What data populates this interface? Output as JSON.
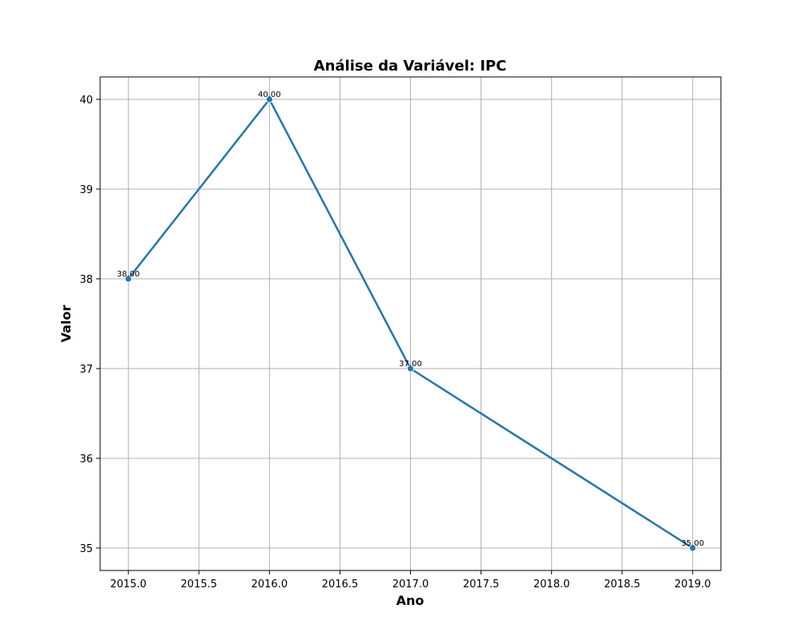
{
  "chart_data": {
    "type": "line",
    "title": "Análise da Variável: IPC",
    "xlabel": "Ano",
    "ylabel": "Valor",
    "x": [
      2015,
      2016,
      2017,
      2019
    ],
    "series": [
      {
        "values": [
          38,
          40,
          37,
          35
        ],
        "labels": [
          "38.00",
          "40.00",
          "37.00",
          "35.00"
        ]
      }
    ],
    "xlim": [
      2014.8,
      2019.2
    ],
    "ylim": [
      34.75,
      40.25
    ],
    "xticks": [
      "2015.0",
      "2015.5",
      "2016.0",
      "2016.5",
      "2017.0",
      "2017.5",
      "2018.0",
      "2018.5",
      "2019.0"
    ],
    "yticks": [
      "35",
      "36",
      "37",
      "38",
      "39",
      "40"
    ],
    "grid": true,
    "line_color": "#1f77b4"
  }
}
